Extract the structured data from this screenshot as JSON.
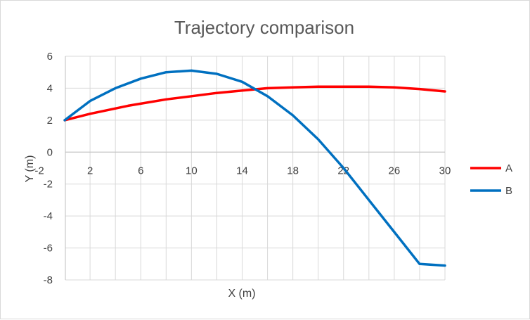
{
  "chart_data": {
    "type": "line",
    "title": "Trajectory comparison",
    "xlabel": "X (m)",
    "ylabel": "Y (m)",
    "xlim": [
      -2,
      30
    ],
    "ylim": [
      -8,
      6
    ],
    "x_ticks": [
      -2,
      2,
      6,
      10,
      14,
      18,
      22,
      26,
      30
    ],
    "x_tick_labels": [
      "-2",
      "2",
      "6",
      "10",
      "14",
      "18",
      "22",
      "26",
      "30"
    ],
    "y_ticks": [
      6,
      4,
      2,
      0,
      -2,
      -4,
      -6,
      -8
    ],
    "y_tick_labels": [
      "6",
      "4",
      "2",
      "0",
      "-2",
      "-4",
      "-6",
      "-8"
    ],
    "grid": true,
    "legend_position": "right",
    "series": [
      {
        "name": "A",
        "color": "#ff0000",
        "x": [
          0,
          2,
          5,
          8,
          10,
          12,
          14,
          16,
          18,
          20,
          22,
          24,
          26,
          28,
          30
        ],
        "y": [
          2.0,
          2.4,
          2.9,
          3.3,
          3.5,
          3.7,
          3.85,
          4.0,
          4.05,
          4.1,
          4.1,
          4.1,
          4.05,
          3.95,
          3.8
        ]
      },
      {
        "name": "B",
        "color": "#0070c0",
        "x": [
          0,
          2,
          4,
          6,
          8,
          10,
          12,
          14,
          16,
          18,
          20,
          22,
          24,
          26,
          28,
          30
        ],
        "y": [
          2.0,
          3.2,
          4.0,
          4.6,
          5.0,
          5.1,
          4.9,
          4.4,
          3.5,
          2.3,
          0.8,
          -1.0,
          -3.0,
          -5.0,
          -7.0,
          -7.1
        ]
      }
    ]
  }
}
